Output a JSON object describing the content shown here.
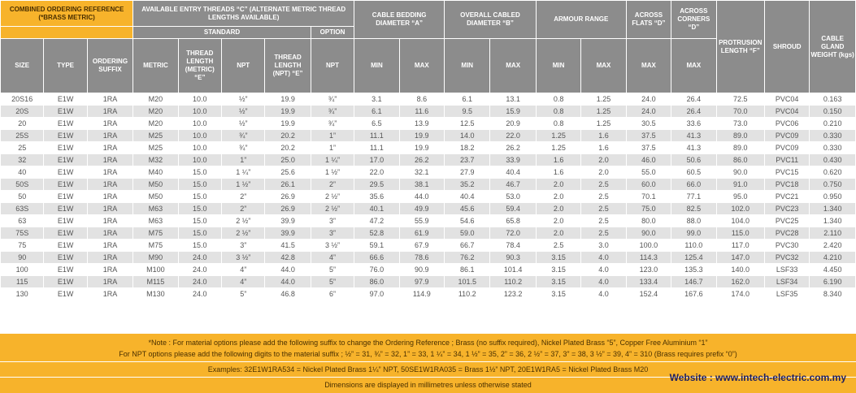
{
  "header": {
    "group_reference": "COMBINED ORDERING REFERENCE (*BRASS METRIC)",
    "group_threads": "AVAILABLE ENTRY THREADS “C” (ALTERNATE METRIC THREAD LENGTHS AVAILABLE)",
    "group_bedding": "CABLE BEDDING DIAMETER “A”",
    "group_overall": "OVERALL CABLED DIAMETER “B”",
    "group_armour": "ARMOUR RANGE",
    "across_flats": "ACROSS FLATS “D”",
    "across_corners": "ACROSS CORNERS “D”",
    "protrusion": "PROTRUSION LENGTH “F”",
    "shroud": "SHROUD",
    "weight": "CABLE GLAND WEIGHT (kgs)",
    "standard": "STANDARD",
    "option": "OPTION",
    "size": "SIZE",
    "type": "TYPE",
    "suffix": "ORDERING SUFFIX",
    "metric": "METRIC",
    "thread_length_metric": "THREAD LENGTH (METRIC) “E”",
    "npt": "NPT",
    "thread_length_npt": "THREAD LENGTH (NPT) “E”",
    "npt_option": "NPT",
    "bed_min": "MIN",
    "bed_max": "MAX",
    "ovr_min": "MIN",
    "ovr_max": "MAX",
    "arm_min": "MIN",
    "arm_max": "MAX",
    "flats_max": "MAX",
    "corners_max": "MAX"
  },
  "rows": [
    [
      "20S16",
      "E1W",
      "1RA",
      "M20",
      "10.0",
      "½”",
      "19.9",
      "¾”",
      "3.1",
      "8.6",
      "6.1",
      "13.1",
      "0.8",
      "1.25",
      "24.0",
      "26.4",
      "72.5",
      "PVC04",
      "0.163"
    ],
    [
      "20S",
      "E1W",
      "1RA",
      "M20",
      "10.0",
      "½”",
      "19.9",
      "¾”",
      "6.1",
      "11.6",
      "9.5",
      "15.9",
      "0.8",
      "1.25",
      "24.0",
      "26.4",
      "70.0",
      "PVC04",
      "0.150"
    ],
    [
      "20",
      "E1W",
      "1RA",
      "M20",
      "10.0",
      "½”",
      "19.9",
      "¾”",
      "6.5",
      "13.9",
      "12.5",
      "20.9",
      "0.8",
      "1.25",
      "30.5",
      "33.6",
      "73.0",
      "PVC06",
      "0.210"
    ],
    [
      "25S",
      "E1W",
      "1RA",
      "M25",
      "10.0",
      "¾”",
      "20.2",
      "1”",
      "11.1",
      "19.9",
      "14.0",
      "22.0",
      "1.25",
      "1.6",
      "37.5",
      "41.3",
      "89.0",
      "PVC09",
      "0.330"
    ],
    [
      "25",
      "E1W",
      "1RA",
      "M25",
      "10.0",
      "¾”",
      "20.2",
      "1”",
      "11.1",
      "19.9",
      "18.2",
      "26.2",
      "1.25",
      "1.6",
      "37.5",
      "41.3",
      "89.0",
      "PVC09",
      "0.330"
    ],
    [
      "32",
      "E1W",
      "1RA",
      "M32",
      "10.0",
      "1”",
      "25.0",
      "1 ¼”",
      "17.0",
      "26.2",
      "23.7",
      "33.9",
      "1.6",
      "2.0",
      "46.0",
      "50.6",
      "86.0",
      "PVC11",
      "0.430"
    ],
    [
      "40",
      "E1W",
      "1RA",
      "M40",
      "15.0",
      "1 ¼”",
      "25.6",
      "1 ½”",
      "22.0",
      "32.1",
      "27.9",
      "40.4",
      "1.6",
      "2.0",
      "55.0",
      "60.5",
      "90.0",
      "PVC15",
      "0.620"
    ],
    [
      "50S",
      "E1W",
      "1RA",
      "M50",
      "15.0",
      "1 ½”",
      "26.1",
      "2”",
      "29.5",
      "38.1",
      "35.2",
      "46.7",
      "2.0",
      "2.5",
      "60.0",
      "66.0",
      "91.0",
      "PVC18",
      "0.750"
    ],
    [
      "50",
      "E1W",
      "1RA",
      "M50",
      "15.0",
      "2”",
      "26.9",
      "2 ½”",
      "35.6",
      "44.0",
      "40.4",
      "53.0",
      "2.0",
      "2.5",
      "70.1",
      "77.1",
      "95.0",
      "PVC21",
      "0.950"
    ],
    [
      "63S",
      "E1W",
      "1RA",
      "M63",
      "15.0",
      "2”",
      "26.9",
      "2 ½”",
      "40.1",
      "49.9",
      "45.6",
      "59.4",
      "2.0",
      "2.5",
      "75.0",
      "82.5",
      "102.0",
      "PVC23",
      "1.340"
    ],
    [
      "63",
      "E1W",
      "1RA",
      "M63",
      "15.0",
      "2 ½”",
      "39.9",
      "3”",
      "47.2",
      "55.9",
      "54.6",
      "65.8",
      "2.0",
      "2.5",
      "80.0",
      "88.0",
      "104.0",
      "PVC25",
      "1.340"
    ],
    [
      "75S",
      "E1W",
      "1RA",
      "M75",
      "15.0",
      "2 ½”",
      "39.9",
      "3”",
      "52.8",
      "61.9",
      "59.0",
      "72.0",
      "2.0",
      "2.5",
      "90.0",
      "99.0",
      "115.0",
      "PVC28",
      "2.110"
    ],
    [
      "75",
      "E1W",
      "1RA",
      "M75",
      "15.0",
      "3”",
      "41.5",
      "3 ½”",
      "59.1",
      "67.9",
      "66.7",
      "78.4",
      "2.5",
      "3.0",
      "100.0",
      "110.0",
      "117.0",
      "PVC30",
      "2.420"
    ],
    [
      "90",
      "E1W",
      "1RA",
      "M90",
      "24.0",
      "3 ½”",
      "42.8",
      "4”",
      "66.6",
      "78.6",
      "76.2",
      "90.3",
      "3.15",
      "4.0",
      "114.3",
      "125.4",
      "147.0",
      "PVC32",
      "4.210"
    ],
    [
      "100",
      "E1W",
      "1RA",
      "M100",
      "24.0",
      "4”",
      "44.0",
      "5”",
      "76.0",
      "90.9",
      "86.1",
      "101.4",
      "3.15",
      "4.0",
      "123.0",
      "135.3",
      "140.0",
      "LSF33",
      "4.450"
    ],
    [
      "115",
      "E1W",
      "1RA",
      "M115",
      "24.0",
      "4”",
      "44.0",
      "5”",
      "86.0",
      "97.9",
      "101.5",
      "110.2",
      "3.15",
      "4.0",
      "133.4",
      "146.7",
      "162.0",
      "LSF34",
      "6.190"
    ],
    [
      "130",
      "E1W",
      "1RA",
      "M130",
      "24.0",
      "5”",
      "46.8",
      "6”",
      "97.0",
      "114.9",
      "110.2",
      "123.2",
      "3.15",
      "4.0",
      "152.4",
      "167.6",
      "174.0",
      "LSF35",
      "8.340"
    ]
  ],
  "notes": {
    "line1": "*Note : For material options please add the following suffix to change the Ordering Reference ; Brass (no suffix required), Nickel Plated Brass “5”, Copper Free Aluminium “1”",
    "line2": "For NPT options please add the following digits to the material suffix ; ½” = 31, ¾” = 32, 1” = 33, 1 ¼” = 34, 1 ½” = 35, 2” = 36, 2 ½” = 37, 3” = 38, 3 ½” = 39, 4” = 310 (Brass requires prefix “0”)",
    "examples": "Examples: 32E1W1RA534 = Nickel Plated Brass 1¼” NPT, 50SE1W1RA035 = Brass 1½” NPT, 20E1W1RA5 = Nickel Plated Brass M20",
    "dimensions": "Dimensions are displayed in millimetres unless otherwise stated",
    "website": "Website : www.intech-electric.com.my"
  },
  "colors": {
    "accent_orange": "#f7b32b",
    "header_grey": "#8c8c8c",
    "row_stripe": "#e2e2e2",
    "website_text": "#1f1f5e"
  }
}
